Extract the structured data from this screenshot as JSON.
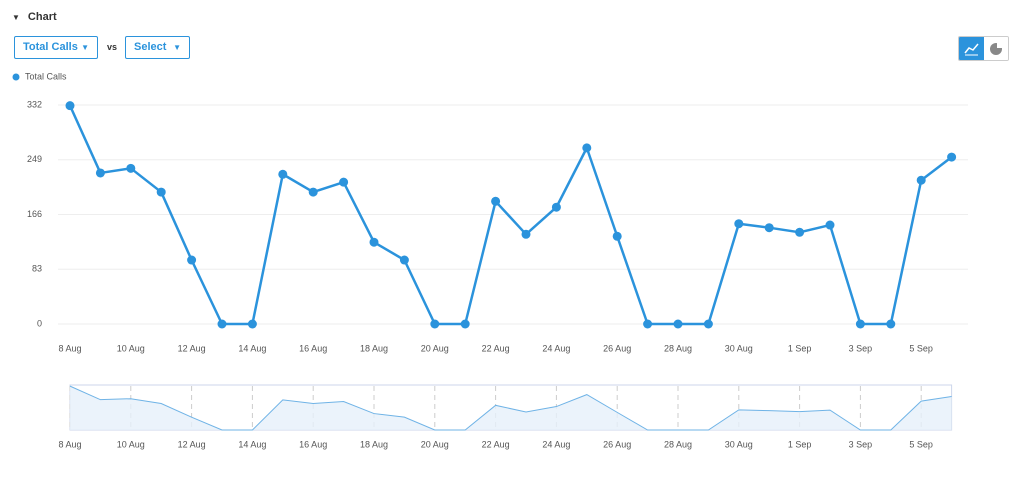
{
  "header": {
    "title": "Chart"
  },
  "controls": {
    "metric": "Total Calls",
    "vs": "vs",
    "compare": "Select"
  },
  "chart_data": {
    "type": "line",
    "categories": [
      "8 Aug",
      null,
      "10 Aug",
      null,
      "12 Aug",
      null,
      "14 Aug",
      null,
      "16 Aug",
      null,
      "18 Aug",
      null,
      "20 Aug",
      null,
      "22 Aug",
      null,
      "24 Aug",
      null,
      "26 Aug",
      null,
      "28 Aug",
      null,
      "30 Aug",
      null,
      "1 Sep",
      null,
      "3 Sep",
      null,
      "5 Sep",
      null
    ],
    "series": [
      {
        "name": "Total Calls",
        "color": "#2b93dc",
        "values": [
          331,
          229,
          236,
          200,
          97,
          0,
          0,
          227,
          200,
          215,
          124,
          97,
          0,
          0,
          186,
          136,
          177,
          267,
          133,
          0,
          0,
          0,
          152,
          146,
          139,
          150,
          0,
          0,
          218,
          253
        ]
      }
    ],
    "ylim": [
      0,
      332
    ],
    "yticks": [
      0,
      83,
      166,
      249,
      332
    ],
    "grid": true
  }
}
